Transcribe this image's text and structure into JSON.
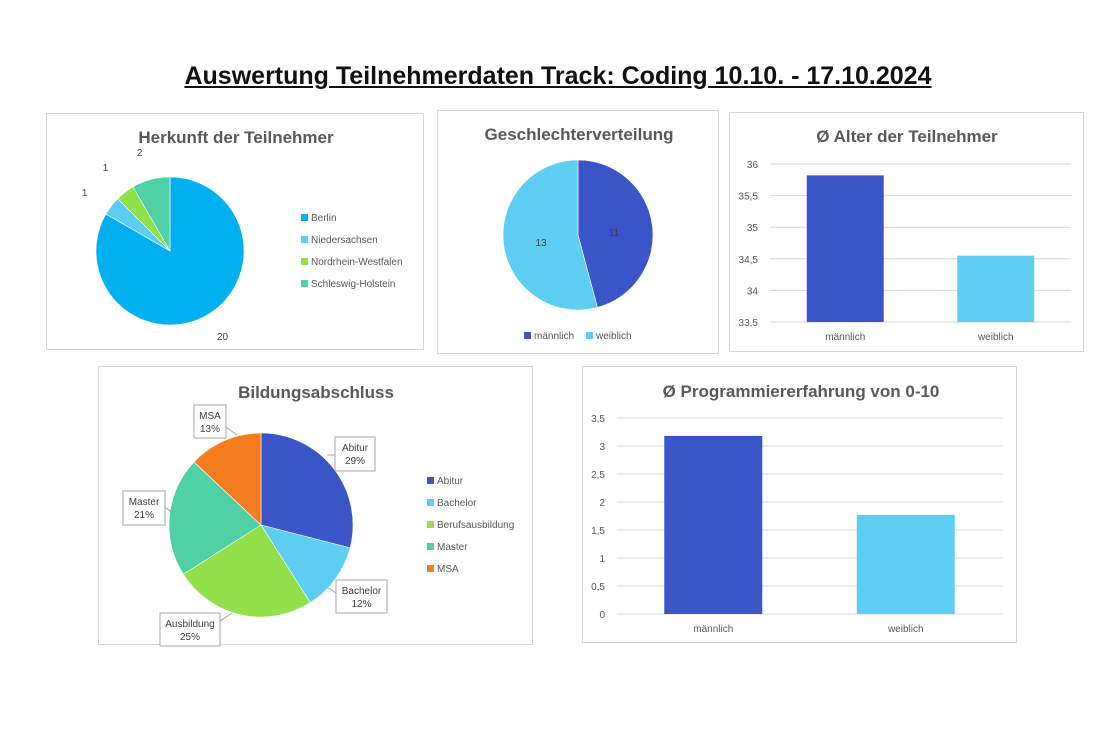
{
  "page": {
    "title": "Auswertung Teilnehmerdaten Track: Coding 10.10. - 17.10.2024"
  },
  "colors": {
    "blue_dark": "#3a55c8",
    "light_blue": "#5ecdf2",
    "pie_blue": "#00b0f0",
    "green": "#92e04a",
    "teal": "#4fd1a5",
    "orange": "#f57c1f",
    "grid": "#d9d9d9",
    "text": "#595959"
  },
  "chart_data": [
    {
      "id": "herkunft",
      "type": "pie",
      "title": "Herkunft der Teilnehmer",
      "categories": [
        "Berlin",
        "Niedersachsen",
        "Nordrhein-Westfalen",
        "Schleswig-Holstein"
      ],
      "values": [
        20,
        1,
        1,
        2
      ],
      "data_labels": [
        "20",
        "1",
        "1",
        "2"
      ],
      "colors": [
        "#00b0f0",
        "#5ecdf2",
        "#92e04a",
        "#4fd1a5"
      ],
      "legend": "right"
    },
    {
      "id": "geschlecht",
      "type": "pie",
      "title": "Geschlechterverteilung",
      "categories": [
        "männlich",
        "weiblich"
      ],
      "values": [
        11,
        13
      ],
      "data_labels": [
        "11",
        "13"
      ],
      "colors": [
        "#3a55c8",
        "#5ecdf2"
      ],
      "legend": "bottom"
    },
    {
      "id": "alter",
      "type": "bar",
      "title": "Ø Alter der Teilnehmer",
      "categories": [
        "männlich",
        "weiblich"
      ],
      "values": [
        35.82,
        34.55
      ],
      "colors": [
        "#3a55c8",
        "#5ecdf2"
      ],
      "ylim": [
        33.5,
        36
      ],
      "yticks": [
        "33,5",
        "34",
        "34,5",
        "35",
        "35,5",
        "36"
      ],
      "grid": true
    },
    {
      "id": "bildung",
      "type": "pie",
      "title": "Bildungsabschluss",
      "categories": [
        "Abitur",
        "Bachelor",
        "Berufsausbildung",
        "Master",
        "MSA"
      ],
      "values": [
        29,
        12,
        25,
        21,
        13
      ],
      "colors": [
        "#3a55c8",
        "#5ecdf2",
        "#92e04a",
        "#4fd1a5",
        "#f57c1f"
      ],
      "callouts": [
        {
          "name": "Abitur",
          "pct": "29%"
        },
        {
          "name": "Bachelor",
          "pct": "12%"
        },
        {
          "name": "Ausbildung",
          "pct": "25%"
        },
        {
          "name": "Master",
          "pct": "21%"
        },
        {
          "name": "MSA",
          "pct": "13%"
        }
      ],
      "legend": "right"
    },
    {
      "id": "programmier",
      "type": "bar",
      "title": "Ø Programmiererfahrung von 0-10",
      "categories": [
        "männlich",
        "weiblich"
      ],
      "values": [
        3.18,
        1.77
      ],
      "colors": [
        "#3a55c8",
        "#5ecdf2"
      ],
      "ylim": [
        0,
        3.5
      ],
      "yticks": [
        "0",
        "0,5",
        "1",
        "1,5",
        "2",
        "2,5",
        "3",
        "3,5"
      ],
      "grid": true
    }
  ]
}
